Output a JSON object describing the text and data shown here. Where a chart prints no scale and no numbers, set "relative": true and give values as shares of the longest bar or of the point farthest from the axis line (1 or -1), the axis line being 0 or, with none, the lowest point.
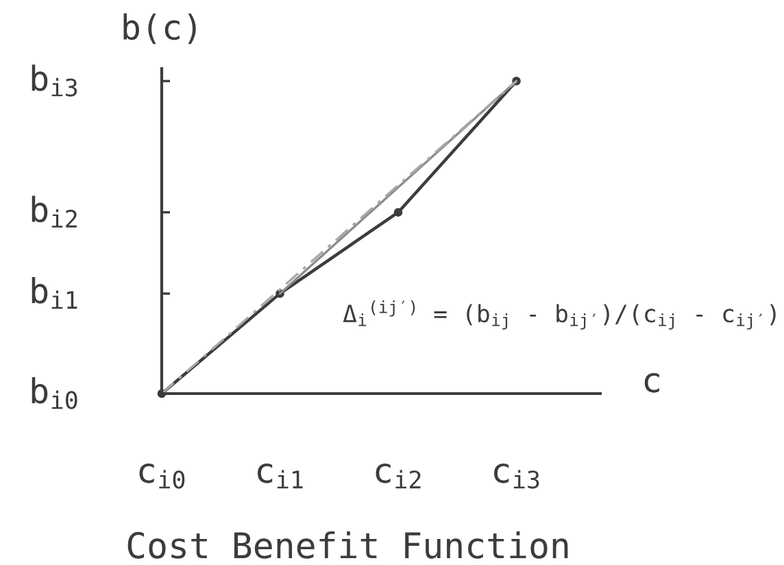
{
  "chart_data": {
    "type": "line",
    "relative": true,
    "title": "Cost Benefit Function",
    "xlabel": "c",
    "ylabel": "b(c)",
    "annotations": [
      "b$_{i0}$",
      "b$_{i1}$",
      "b$_{i2}$",
      "b$_{i3}$",
      "Δ$_{i}$$^{(ij′)}$ = (b$_{ij}$ - b$_{ij′}$)/(c$_{ij}$ - c$_{ij′}$)"
    ],
    "categories": [
      "c$_{i0}$",
      "c$_{i1}$",
      "c$_{i2}$",
      "c$_{i3}$"
    ],
    "series": [
      {
        "color": "#3c3c3c",
        "values": [
          0,
          0.32,
          0.58,
          1.0
        ],
        "marker": "circle",
        "line_style": "solid"
      },
      {
        "color": "#8c8c8c",
        "x": [
          "c$_{i1}$",
          "c$_{i3}$"
        ],
        "values": [
          0.32,
          1.0
        ],
        "marker": "none",
        "line_style": "solid"
      },
      {
        "color": "#a8a8a8",
        "x": [
          "c$_{i0}$",
          "c$_{i3}$"
        ],
        "values": [
          0,
          1.0
        ],
        "marker": "none",
        "line_style": "dashed"
      }
    ],
    "grid": false
  }
}
